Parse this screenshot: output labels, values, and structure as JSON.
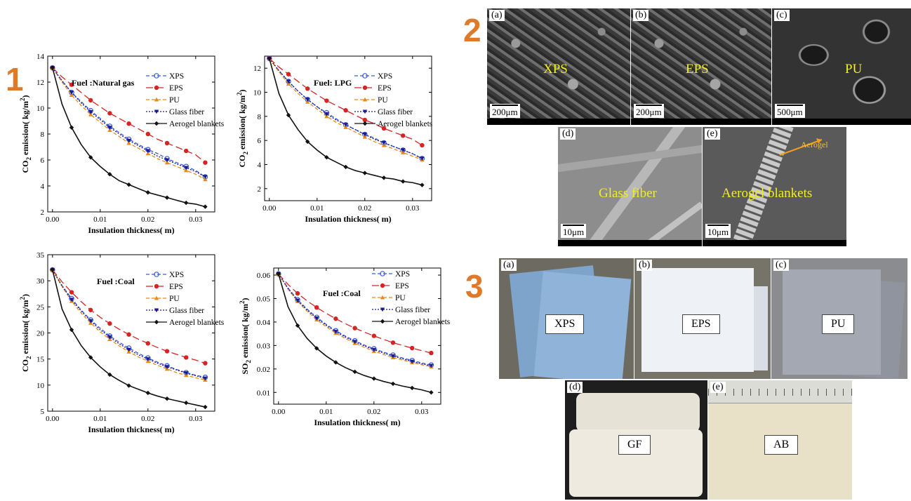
{
  "section_numbers": [
    "1",
    "2",
    "3"
  ],
  "accent_color": "#e07a2b",
  "series_style": [
    {
      "name": "XPS",
      "color": "#3b5bdb",
      "dash": "5,3",
      "marker": "circle-open"
    },
    {
      "name": "EPS",
      "color": "#d62424",
      "dash": "10,5",
      "marker": "circle"
    },
    {
      "name": "PU",
      "color": "#e88a1a",
      "dash": "5,3",
      "marker": "triangle"
    },
    {
      "name": "Glass fiber",
      "color": "#1a1a8c",
      "dash": "2,2",
      "marker": "triangle-down"
    },
    {
      "name": "Aerogel blankets",
      "color": "#111111",
      "dash": "",
      "marker": "diamond"
    }
  ],
  "chart_data": [
    {
      "type": "line",
      "annotation": "Fuel :Natural gas",
      "xlabel": "Insulation thickness( m)",
      "ylabel": "CO2 emission( kg/m2)",
      "ylabel_parts": [
        "CO",
        "2",
        " emission( kg/m",
        "2",
        ")"
      ],
      "xlim": [
        -0.001,
        0.034
      ],
      "ylim": [
        2,
        14
      ],
      "xticks": [
        0.0,
        0.01,
        0.02,
        0.03
      ],
      "xtick_labels": [
        "0.00",
        "0.01",
        "0.02",
        "0.03"
      ],
      "yticks": [
        2,
        4,
        6,
        8,
        10,
        12,
        14
      ],
      "ytick_labels": [
        "2",
        "4",
        "6",
        "8",
        "10",
        "12",
        "14"
      ],
      "legend_position": "top-right",
      "x": [
        0.0,
        0.002,
        0.004,
        0.006,
        0.008,
        0.01,
        0.012,
        0.014,
        0.016,
        0.018,
        0.02,
        0.022,
        0.024,
        0.026,
        0.028,
        0.03,
        0.032
      ],
      "marker_x": [
        0.0,
        0.004,
        0.008,
        0.012,
        0.016,
        0.02,
        0.024,
        0.028,
        0.032
      ],
      "series": [
        {
          "name": "XPS",
          "values": [
            13.1,
            12.1,
            11.2,
            10.5,
            9.8,
            9.2,
            8.6,
            8.1,
            7.6,
            7.2,
            6.8,
            6.5,
            6.1,
            5.8,
            5.5,
            5.2,
            4.7
          ]
        },
        {
          "name": "EPS",
          "values": [
            13.1,
            12.4,
            11.8,
            11.2,
            10.6,
            10.1,
            9.6,
            9.2,
            8.8,
            8.4,
            8.0,
            7.6,
            7.3,
            7.0,
            6.7,
            6.4,
            5.8
          ]
        },
        {
          "name": "PU",
          "values": [
            13.1,
            12.0,
            11.0,
            10.2,
            9.5,
            8.9,
            8.3,
            7.8,
            7.3,
            6.9,
            6.5,
            6.1,
            5.8,
            5.5,
            5.2,
            4.9,
            4.5
          ]
        },
        {
          "name": "Glass fiber",
          "values": [
            13.1,
            12.1,
            11.2,
            10.4,
            9.7,
            9.1,
            8.5,
            8.0,
            7.5,
            7.1,
            6.7,
            6.3,
            6.0,
            5.7,
            5.4,
            5.1,
            4.7
          ]
        },
        {
          "name": "Aerogel blankets",
          "values": [
            13.1,
            10.3,
            8.5,
            7.2,
            6.2,
            5.5,
            4.9,
            4.4,
            4.1,
            3.8,
            3.5,
            3.3,
            3.1,
            2.9,
            2.7,
            2.6,
            2.4
          ]
        }
      ]
    },
    {
      "type": "line",
      "annotation": "Fuel: LPG",
      "xlabel": "Insulation thickness( m)",
      "ylabel": "CO2 emission( kg/m2)",
      "ylabel_parts": [
        "CO",
        "2",
        " emission( kg/m",
        "2",
        ")"
      ],
      "xlim": [
        -0.001,
        0.034
      ],
      "ylim": [
        1,
        13
      ],
      "xticks": [
        0.0,
        0.01,
        0.02,
        0.03
      ],
      "xtick_labels": [
        "0.00",
        "0.01",
        "0.02",
        "0.03"
      ],
      "yticks": [
        2,
        4,
        6,
        8,
        10,
        12
      ],
      "ytick_labels": [
        "2",
        "4",
        "6",
        "8",
        "10",
        "12"
      ],
      "legend_position": "top-right",
      "x": [
        0.0,
        0.002,
        0.004,
        0.006,
        0.008,
        0.01,
        0.012,
        0.014,
        0.016,
        0.018,
        0.02,
        0.022,
        0.024,
        0.026,
        0.028,
        0.03,
        0.032
      ],
      "marker_x": [
        0.0,
        0.004,
        0.008,
        0.012,
        0.016,
        0.02,
        0.024,
        0.028,
        0.032
      ],
      "series": [
        {
          "name": "XPS",
          "values": [
            12.8,
            11.8,
            10.9,
            10.1,
            9.4,
            8.8,
            8.3,
            7.8,
            7.3,
            6.9,
            6.5,
            6.2,
            5.8,
            5.5,
            5.2,
            4.9,
            4.5
          ]
        },
        {
          "name": "EPS",
          "values": [
            12.8,
            12.1,
            11.5,
            10.9,
            10.3,
            9.8,
            9.3,
            8.9,
            8.5,
            8.1,
            7.7,
            7.4,
            7.0,
            6.7,
            6.4,
            6.1,
            5.6
          ]
        },
        {
          "name": "PU",
          "values": [
            12.8,
            11.7,
            10.7,
            9.9,
            9.2,
            8.6,
            8.0,
            7.5,
            7.1,
            6.7,
            6.3,
            5.9,
            5.6,
            5.3,
            5.0,
            4.7,
            4.4
          ]
        },
        {
          "name": "Glass fiber",
          "values": [
            12.8,
            11.8,
            10.9,
            10.1,
            9.4,
            8.8,
            8.2,
            7.7,
            7.3,
            6.9,
            6.5,
            6.1,
            5.8,
            5.5,
            5.2,
            4.9,
            4.5
          ]
        },
        {
          "name": "Aerogel blankets",
          "values": [
            12.8,
            9.9,
            8.1,
            6.9,
            5.9,
            5.2,
            4.6,
            4.2,
            3.8,
            3.5,
            3.3,
            3.1,
            2.9,
            2.8,
            2.6,
            2.5,
            2.3
          ]
        }
      ]
    },
    {
      "type": "line",
      "annotation": "Fuel :Coal",
      "xlabel": "Insulation thickness( m)",
      "ylabel": "CO2 emission( kg/m2)",
      "ylabel_parts": [
        "CO",
        "2",
        " emission( kg/m",
        "2",
        ")"
      ],
      "xlim": [
        -0.001,
        0.034
      ],
      "ylim": [
        5,
        35
      ],
      "xticks": [
        0.0,
        0.01,
        0.02,
        0.03
      ],
      "xtick_labels": [
        "0.00",
        "0.01",
        "0.02",
        "0.03"
      ],
      "yticks": [
        5,
        10,
        15,
        20,
        25,
        30,
        35
      ],
      "ytick_labels": [
        "5",
        "10",
        "15",
        "20",
        "25",
        "30",
        "35"
      ],
      "legend_position": "top-right",
      "x": [
        0.0,
        0.002,
        0.004,
        0.006,
        0.008,
        0.01,
        0.012,
        0.014,
        0.016,
        0.018,
        0.02,
        0.022,
        0.024,
        0.026,
        0.028,
        0.03,
        0.032
      ],
      "marker_x": [
        0.0,
        0.004,
        0.008,
        0.012,
        0.016,
        0.02,
        0.024,
        0.028,
        0.032
      ],
      "series": [
        {
          "name": "XPS",
          "values": [
            32.1,
            29.1,
            26.6,
            24.4,
            22.5,
            20.9,
            19.4,
            18.2,
            17.1,
            16.1,
            15.2,
            14.4,
            13.7,
            13.0,
            12.4,
            11.9,
            11.5
          ]
        },
        {
          "name": "EPS",
          "values": [
            32.1,
            29.8,
            27.8,
            26.0,
            24.4,
            23.0,
            21.8,
            20.7,
            19.7,
            18.8,
            18.0,
            17.2,
            16.5,
            15.9,
            15.3,
            14.8,
            14.2
          ]
        },
        {
          "name": "PU",
          "values": [
            32.1,
            28.9,
            26.1,
            23.8,
            21.9,
            20.2,
            18.8,
            17.5,
            16.4,
            15.4,
            14.6,
            13.8,
            13.1,
            12.4,
            11.9,
            11.4,
            11.0
          ]
        },
        {
          "name": "Glass fiber",
          "values": [
            32.1,
            29.0,
            26.4,
            24.2,
            22.3,
            20.6,
            19.2,
            17.9,
            16.8,
            15.8,
            15.0,
            14.2,
            13.5,
            12.9,
            12.3,
            11.8,
            11.3
          ]
        },
        {
          "name": "Aerogel blankets",
          "values": [
            32.1,
            24.6,
            20.6,
            17.6,
            15.3,
            13.5,
            12.0,
            10.9,
            9.9,
            9.2,
            8.5,
            7.9,
            7.4,
            7.0,
            6.6,
            6.2,
            5.8
          ]
        }
      ]
    },
    {
      "type": "line",
      "annotation": "Fuel :Coal",
      "xlabel": "Insulation thickness( m)",
      "ylabel": "SO2 emission( kg/m2)",
      "ylabel_parts": [
        "SO",
        "2",
        " emission( kg/m",
        "2",
        ")"
      ],
      "xlim": [
        -0.001,
        0.034
      ],
      "ylim": [
        0.005,
        0.063
      ],
      "xticks": [
        0.0,
        0.01,
        0.02,
        0.03
      ],
      "xtick_labels": [
        "0.00",
        "0.01",
        "0.02",
        "0.03"
      ],
      "yticks": [
        0.01,
        0.02,
        0.03,
        0.04,
        0.05,
        0.06
      ],
      "ytick_labels": [
        "0.01",
        "0.02",
        "0.03",
        "0.04",
        "0.05",
        "0.06"
      ],
      "legend_position": "top-right",
      "x": [
        0.0,
        0.002,
        0.004,
        0.006,
        0.008,
        0.01,
        0.012,
        0.014,
        0.016,
        0.018,
        0.02,
        0.022,
        0.024,
        0.026,
        0.028,
        0.03,
        0.032
      ],
      "marker_x": [
        0.0,
        0.004,
        0.008,
        0.012,
        0.016,
        0.02,
        0.024,
        0.028,
        0.032
      ],
      "series": [
        {
          "name": "XPS",
          "values": [
            0.0605,
            0.0545,
            0.0495,
            0.0455,
            0.042,
            0.039,
            0.0363,
            0.034,
            0.032,
            0.0302,
            0.0286,
            0.0272,
            0.0259,
            0.0247,
            0.0236,
            0.0226,
            0.0217
          ]
        },
        {
          "name": "EPS",
          "values": [
            0.0605,
            0.056,
            0.0522,
            0.049,
            0.0462,
            0.0437,
            0.0414,
            0.0393,
            0.0374,
            0.0357,
            0.0341,
            0.0326,
            0.0312,
            0.03,
            0.0289,
            0.0278,
            0.0268
          ]
        },
        {
          "name": "PU",
          "values": [
            0.0605,
            0.054,
            0.0488,
            0.0446,
            0.041,
            0.038,
            0.0353,
            0.033,
            0.031,
            0.0292,
            0.0276,
            0.0262,
            0.0249,
            0.0238,
            0.0228,
            0.0218,
            0.021
          ]
        },
        {
          "name": "Glass fiber",
          "values": [
            0.0605,
            0.0543,
            0.0492,
            0.0451,
            0.0416,
            0.0386,
            0.0359,
            0.0336,
            0.0316,
            0.0298,
            0.0282,
            0.0268,
            0.0255,
            0.0243,
            0.0232,
            0.0222,
            0.0214
          ]
        },
        {
          "name": "Aerogel blankets",
          "values": [
            0.0605,
            0.0465,
            0.0385,
            0.033,
            0.0288,
            0.0255,
            0.0228,
            0.0206,
            0.0188,
            0.0172,
            0.0159,
            0.0147,
            0.0137,
            0.0127,
            0.0119,
            0.0111,
            0.01
          ]
        }
      ]
    }
  ],
  "sem_panels": [
    {
      "letter": "(a)",
      "material": "XPS",
      "scale": "200μm"
    },
    {
      "letter": "(b)",
      "material": "EPS",
      "scale": "200μm"
    },
    {
      "letter": "(c)",
      "material": "PU",
      "scale": "500μm"
    },
    {
      "letter": "(d)",
      "material": "Glass fiber",
      "scale": "10μm"
    },
    {
      "letter": "(e)",
      "material": "Aerogel blankets",
      "scale": "10μm",
      "arrow_label": "Aerogel"
    }
  ],
  "sample_photos": [
    {
      "letter": "(a)",
      "label": "XPS",
      "color": "#8fb3d9"
    },
    {
      "letter": "(b)",
      "label": "EPS",
      "color": "#e8ecf2"
    },
    {
      "letter": "(c)",
      "label": "PU",
      "color": "#a3a8b3"
    },
    {
      "letter": "(d)",
      "label": "GF",
      "color": "#eeeae0"
    },
    {
      "letter": "(e)",
      "label": "AB",
      "color": "#e9e1c7"
    }
  ]
}
